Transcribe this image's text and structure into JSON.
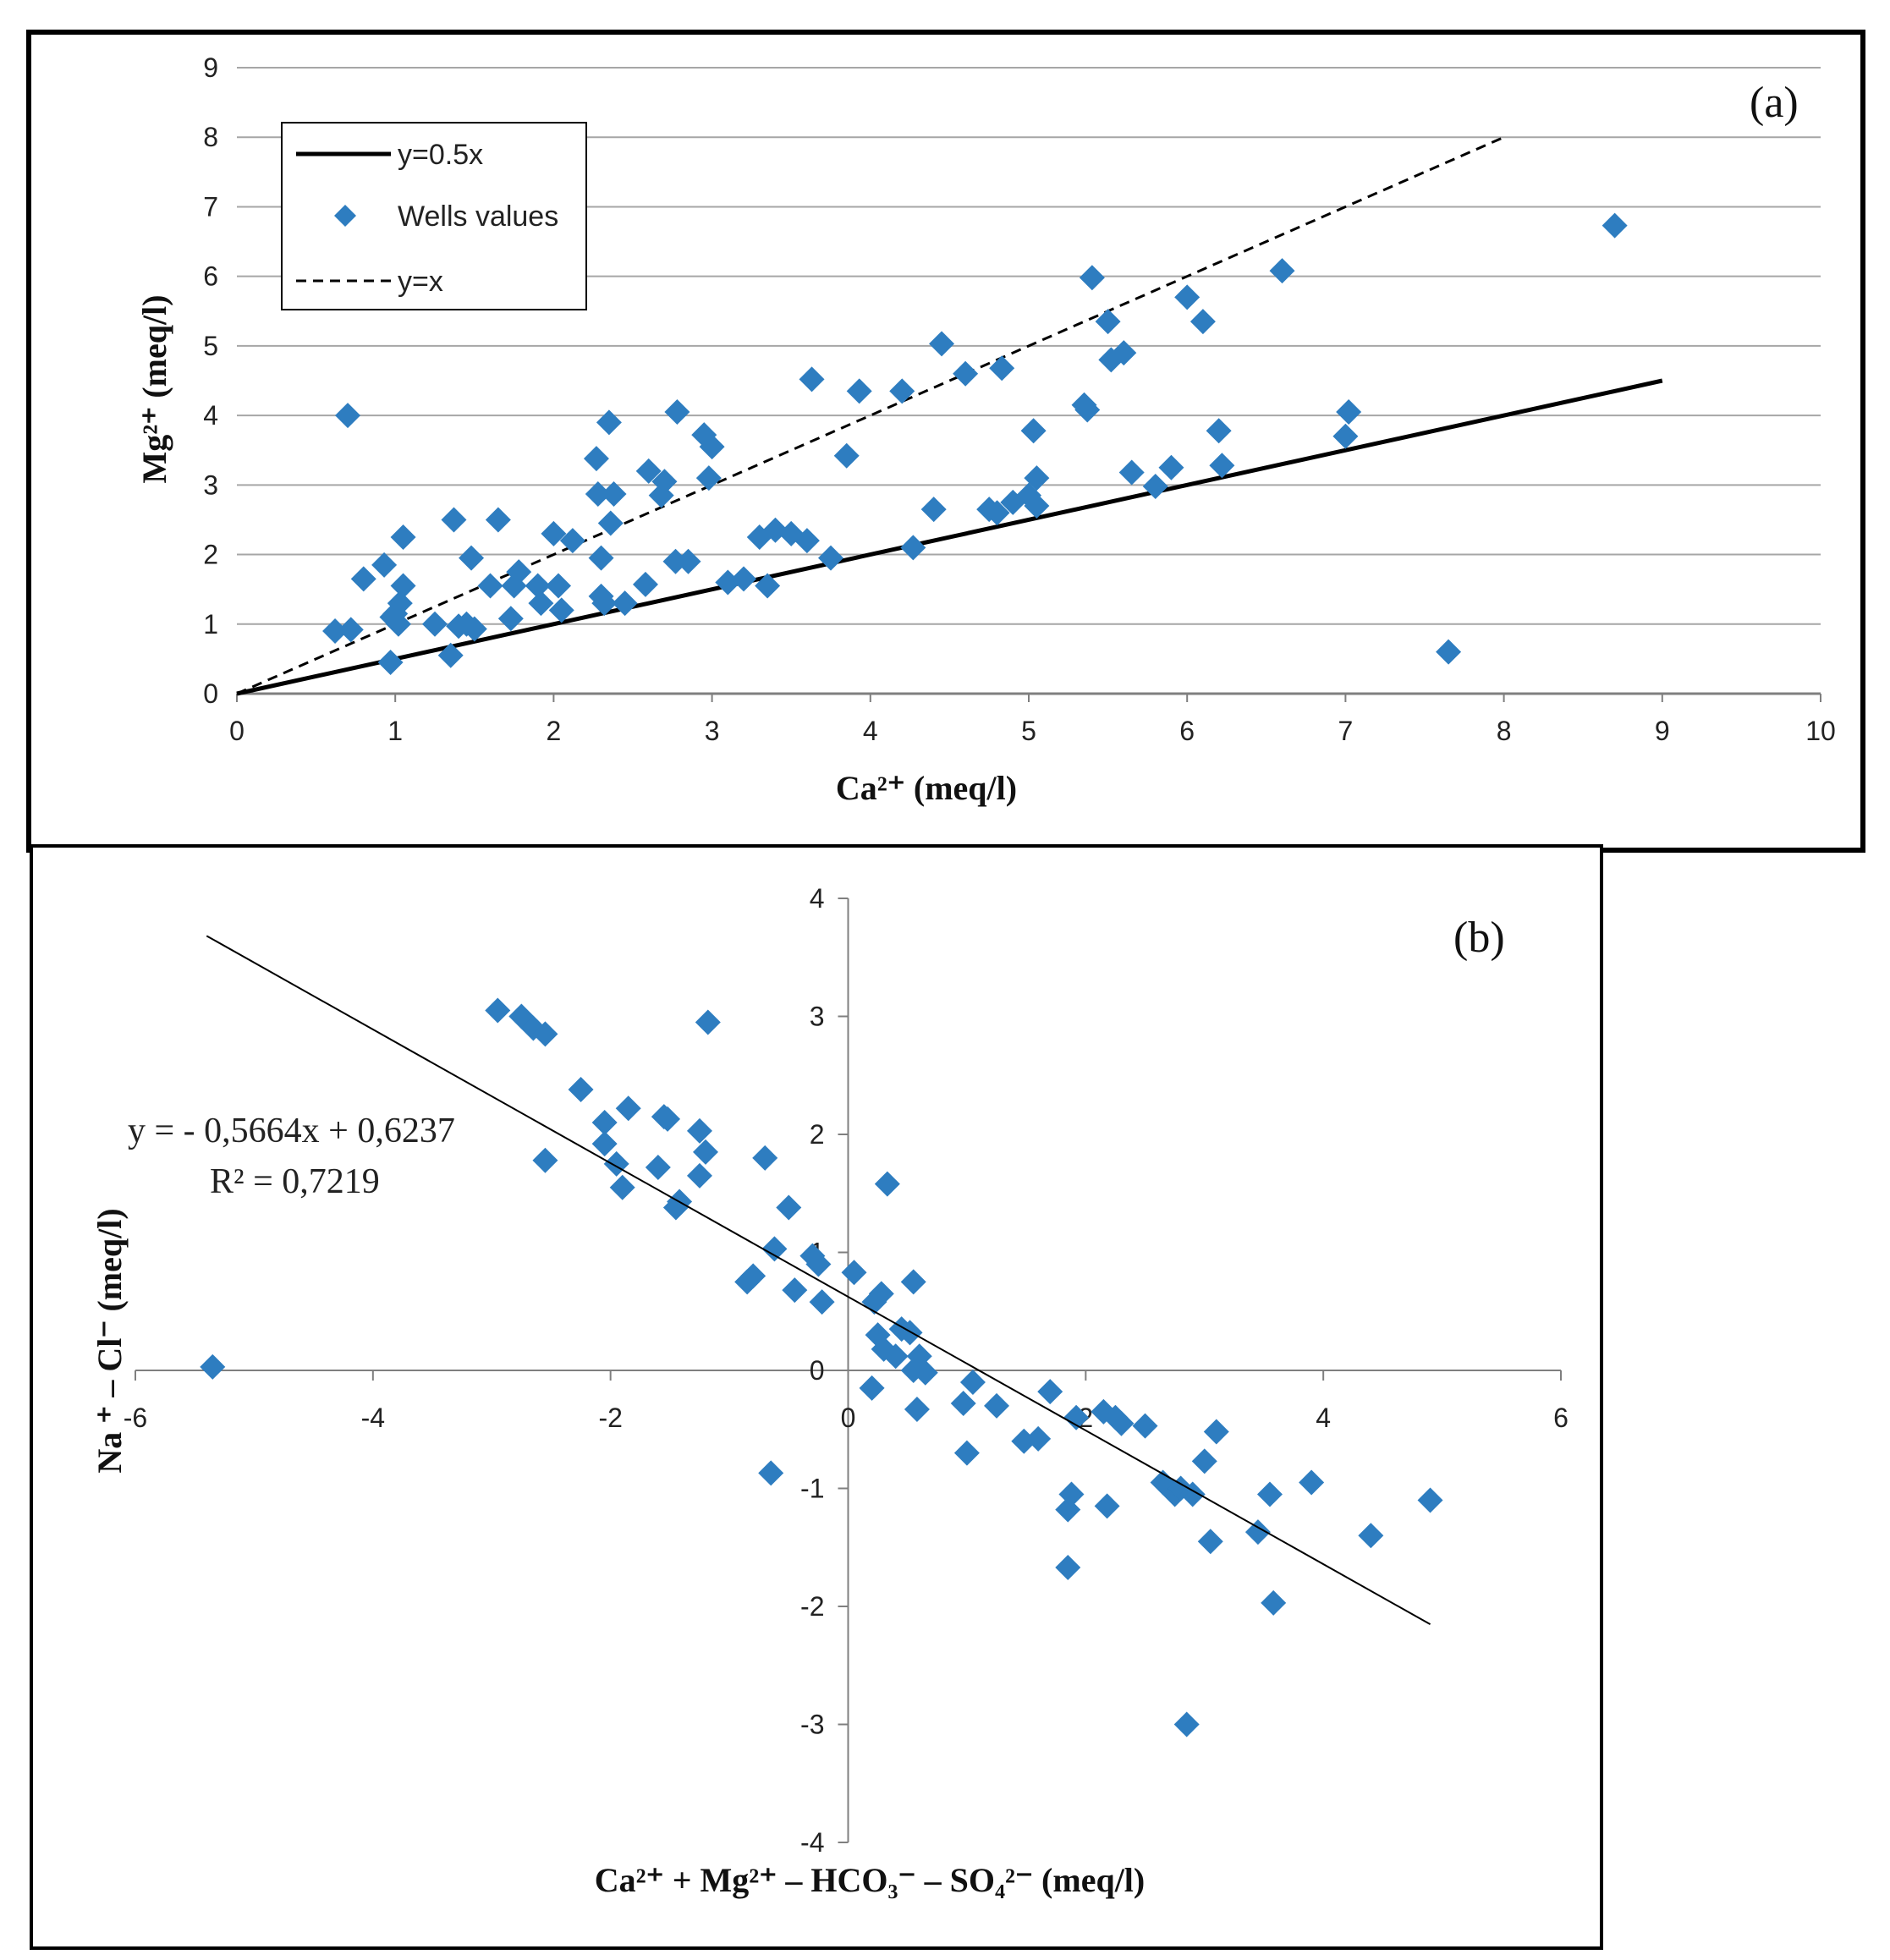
{
  "chart_data": [
    {
      "type": "scatter",
      "panel_label": "(a)",
      "xlabel": "Ca²⁺ (meq/l)",
      "ylabel": "Mg²⁺ (meq/l)",
      "xlim": [
        0,
        10
      ],
      "ylim": [
        0,
        9
      ],
      "x_ticks": [
        "0",
        "1",
        "2",
        "3",
        "4",
        "5",
        "6",
        "7",
        "8",
        "9",
        "10"
      ],
      "y_ticks": [
        "0",
        "1",
        "2",
        "3",
        "4",
        "5",
        "6",
        "7",
        "8",
        "9"
      ],
      "grid": "horizontal",
      "legend_position": "top-left",
      "legend": {
        "line_half": "y=0.5x",
        "points": "Wells values",
        "line_equal": "y=x"
      },
      "reference_lines": [
        {
          "name": "y=0.5x",
          "slope": 0.5,
          "x_range": [
            0,
            9
          ],
          "style": "solid"
        },
        {
          "name": "y=x",
          "slope": 1,
          "x_range": [
            0,
            8
          ],
          "style": "dashed"
        }
      ],
      "colors": {
        "points": "#2e7dc0",
        "lines": "#000000",
        "grid": "#a6a6a6"
      },
      "series": [
        {
          "name": "Wells values",
          "points": [
            [
              0.7,
              4.0
            ],
            [
              0.62,
              0.9
            ],
            [
              0.72,
              0.92
            ],
            [
              0.8,
              1.65
            ],
            [
              0.93,
              1.85
            ],
            [
              0.97,
              0.45
            ],
            [
              0.98,
              1.1
            ],
            [
              1.0,
              1.15
            ],
            [
              1.02,
              1.0
            ],
            [
              1.03,
              1.3
            ],
            [
              1.05,
              1.55
            ],
            [
              1.05,
              2.25
            ],
            [
              1.25,
              1.0
            ],
            [
              1.35,
              0.55
            ],
            [
              1.37,
              2.5
            ],
            [
              1.4,
              0.97
            ],
            [
              1.45,
              1.0
            ],
            [
              1.48,
              1.95
            ],
            [
              1.5,
              0.93
            ],
            [
              1.6,
              1.55
            ],
            [
              1.65,
              2.5
            ],
            [
              1.73,
              1.08
            ],
            [
              1.75,
              1.55
            ],
            [
              1.78,
              1.75
            ],
            [
              1.9,
              1.55
            ],
            [
              1.92,
              1.3
            ],
            [
              2.0,
              2.3
            ],
            [
              2.03,
              1.55
            ],
            [
              2.05,
              1.2
            ],
            [
              2.12,
              2.2
            ],
            [
              2.27,
              3.38
            ],
            [
              2.28,
              2.87
            ],
            [
              2.3,
              1.95
            ],
            [
              2.3,
              1.4
            ],
            [
              2.32,
              1.3
            ],
            [
              2.35,
              3.9
            ],
            [
              2.36,
              2.45
            ],
            [
              2.38,
              2.87
            ],
            [
              2.45,
              1.3
            ],
            [
              2.58,
              1.57
            ],
            [
              2.6,
              3.2
            ],
            [
              2.68,
              2.85
            ],
            [
              2.7,
              3.05
            ],
            [
              2.77,
              1.9
            ],
            [
              2.78,
              4.05
            ],
            [
              2.85,
              1.9
            ],
            [
              2.95,
              3.72
            ],
            [
              2.98,
              3.1
            ],
            [
              3.0,
              3.55
            ],
            [
              3.1,
              1.6
            ],
            [
              3.2,
              1.65
            ],
            [
              3.3,
              2.25
            ],
            [
              3.35,
              1.55
            ],
            [
              3.4,
              2.35
            ],
            [
              3.5,
              2.3
            ],
            [
              3.6,
              2.2
            ],
            [
              3.63,
              4.52
            ],
            [
              3.75,
              1.95
            ],
            [
              3.85,
              3.42
            ],
            [
              3.93,
              4.35
            ],
            [
              4.2,
              4.35
            ],
            [
              4.27,
              2.1
            ],
            [
              4.4,
              2.65
            ],
            [
              4.45,
              5.03
            ],
            [
              4.6,
              4.6
            ],
            [
              4.75,
              2.65
            ],
            [
              4.8,
              2.6
            ],
            [
              4.83,
              4.68
            ],
            [
              4.9,
              2.75
            ],
            [
              5.0,
              2.85
            ],
            [
              5.03,
              3.78
            ],
            [
              5.05,
              2.7
            ],
            [
              5.05,
              3.1
            ],
            [
              5.35,
              4.15
            ],
            [
              5.37,
              4.08
            ],
            [
              5.4,
              5.98
            ],
            [
              5.5,
              5.35
            ],
            [
              5.52,
              4.8
            ],
            [
              5.6,
              4.9
            ],
            [
              5.65,
              3.18
            ],
            [
              5.8,
              2.98
            ],
            [
              5.9,
              3.25
            ],
            [
              6.0,
              5.7
            ],
            [
              6.1,
              5.35
            ],
            [
              6.2,
              3.78
            ],
            [
              6.22,
              3.28
            ],
            [
              6.6,
              6.08
            ],
            [
              7.0,
              3.7
            ],
            [
              7.02,
              4.05
            ],
            [
              7.65,
              0.6
            ],
            [
              8.7,
              6.73
            ]
          ]
        }
      ]
    },
    {
      "type": "scatter",
      "panel_label": "(b)",
      "xlabel": "Ca²⁺ + Mg²⁺ – HCO₃⁻ – SO₄²⁻ (meq/l)",
      "ylabel": "Na ⁺ – Cl⁻ (meq/l)",
      "xlim": [
        -6,
        6
      ],
      "ylim": [
        -4,
        4
      ],
      "x_ticks": [
        "-6",
        "-4",
        "-2",
        "0",
        "2",
        "4",
        "6"
      ],
      "y_ticks": [
        "-4",
        "-3",
        "-2",
        "-1",
        "0",
        "1",
        "2",
        "3",
        "4"
      ],
      "grid": "none",
      "axes": "centered",
      "trendline": {
        "slope": -0.5664,
        "intercept": 0.6237,
        "x_range": [
          -5.4,
          4.9
        ]
      },
      "equation_text": "y = - 0,5664x + 0,6237",
      "r2_text": "R² = 0,7219",
      "colors": {
        "points": "#2e7dc0",
        "lines": "#000000"
      },
      "series": [
        {
          "points": [
            [
              -5.35,
              0.03
            ],
            [
              -2.95,
              3.05
            ],
            [
              -2.75,
              3.0
            ],
            [
              -2.65,
              2.9
            ],
            [
              -2.55,
              2.85
            ],
            [
              -2.55,
              1.78
            ],
            [
              -2.25,
              2.38
            ],
            [
              -2.05,
              2.1
            ],
            [
              -2.05,
              1.92
            ],
            [
              -1.95,
              1.75
            ],
            [
              -1.9,
              1.55
            ],
            [
              -1.85,
              2.22
            ],
            [
              -1.6,
              1.72
            ],
            [
              -1.55,
              2.15
            ],
            [
              -1.52,
              2.13
            ],
            [
              -1.45,
              1.38
            ],
            [
              -1.42,
              1.43
            ],
            [
              -1.25,
              2.03
            ],
            [
              -1.25,
              1.65
            ],
            [
              -1.2,
              1.85
            ],
            [
              -1.18,
              2.95
            ],
            [
              -0.85,
              0.75
            ],
            [
              -0.8,
              0.8
            ],
            [
              -0.7,
              1.8
            ],
            [
              -0.65,
              -0.87
            ],
            [
              -0.62,
              1.03
            ],
            [
              -0.5,
              1.38
            ],
            [
              -0.45,
              0.68
            ],
            [
              -0.3,
              0.97
            ],
            [
              -0.25,
              0.9
            ],
            [
              -0.22,
              0.58
            ],
            [
              0.05,
              0.83
            ],
            [
              0.2,
              -0.15
            ],
            [
              0.22,
              0.58
            ],
            [
              0.25,
              0.3
            ],
            [
              0.28,
              0.65
            ],
            [
              0.3,
              0.18
            ],
            [
              0.33,
              1.58
            ],
            [
              0.4,
              0.12
            ],
            [
              0.45,
              0.35
            ],
            [
              0.52,
              0.32
            ],
            [
              0.55,
              0.75
            ],
            [
              0.55,
              0.0
            ],
            [
              0.58,
              -0.33
            ],
            [
              0.6,
              0.12
            ],
            [
              0.65,
              -0.02
            ],
            [
              0.97,
              -0.28
            ],
            [
              1.0,
              -0.7
            ],
            [
              1.05,
              -0.1
            ],
            [
              1.25,
              -0.3
            ],
            [
              1.48,
              -0.6
            ],
            [
              1.6,
              -0.58
            ],
            [
              1.7,
              -0.18
            ],
            [
              1.85,
              -1.18
            ],
            [
              1.85,
              -1.67
            ],
            [
              1.88,
              -1.05
            ],
            [
              1.92,
              -0.4
            ],
            [
              2.15,
              -0.35
            ],
            [
              2.18,
              -1.15
            ],
            [
              2.25,
              -0.4
            ],
            [
              2.3,
              -0.45
            ],
            [
              2.5,
              -0.47
            ],
            [
              2.65,
              -0.95
            ],
            [
              2.75,
              -1.05
            ],
            [
              2.8,
              -1.0
            ],
            [
              2.85,
              -3.0
            ],
            [
              2.9,
              -1.05
            ],
            [
              3.0,
              -0.77
            ],
            [
              3.05,
              -1.45
            ],
            [
              3.1,
              -0.52
            ],
            [
              3.45,
              -1.37
            ],
            [
              3.55,
              -1.05
            ],
            [
              3.58,
              -1.97
            ],
            [
              3.9,
              -0.95
            ],
            [
              4.4,
              -1.4
            ],
            [
              4.9,
              -1.1
            ]
          ]
        }
      ]
    }
  ]
}
